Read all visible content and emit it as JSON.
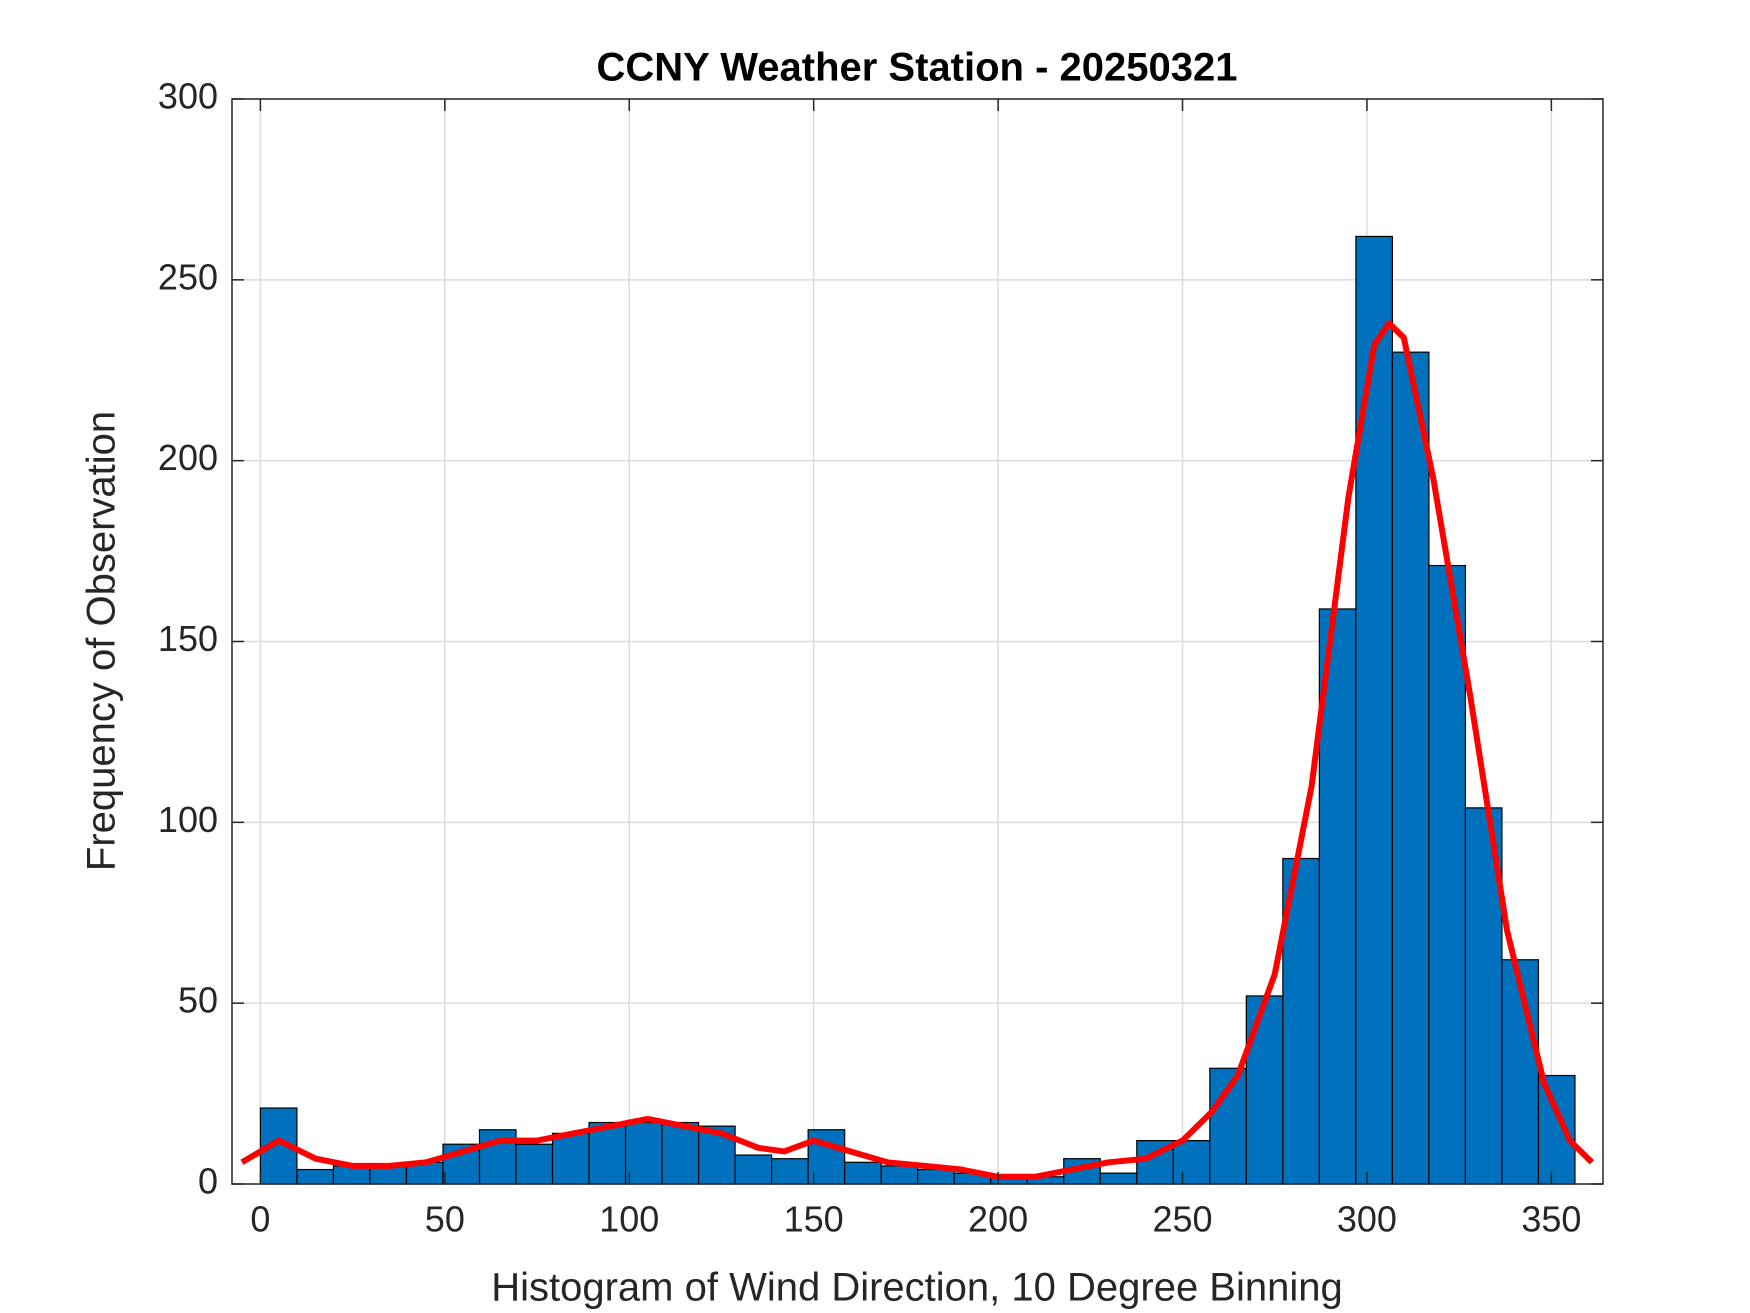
{
  "chart_data": {
    "type": "histogram",
    "title": "CCNY Weather Station - 20250321",
    "xlabel": "Histogram of Wind Direction, 10 Degree Binning",
    "ylabel": "Frequency of Observation",
    "bins": [
      0,
      9.9,
      19.8,
      29.7,
      39.6,
      49.5,
      59.4,
      69.3,
      79.2,
      89.1,
      99,
      108.9,
      118.8,
      128.7,
      138.6,
      148.5,
      158.4,
      168.3,
      178.2,
      188.1,
      198,
      207.9,
      217.8,
      227.7,
      237.6,
      247.5,
      257.4,
      267.3,
      277.2,
      287.1,
      297,
      306.9,
      316.8,
      326.7,
      336.6,
      346.5,
      356.4
    ],
    "counts": [
      21,
      4,
      5,
      5,
      6,
      11,
      15,
      11,
      14,
      17,
      17,
      17,
      16,
      8,
      7,
      15,
      6,
      5,
      4,
      3,
      2,
      2,
      7,
      3,
      12,
      12,
      32,
      52,
      90,
      159,
      262,
      230,
      171,
      104,
      62,
      30
    ],
    "color": "#0072bd",
    "edgecolor": "#000000",
    "curve": {
      "color": "#ff0000",
      "x": [
        -5,
        5,
        15,
        25,
        35,
        45,
        55,
        65,
        75,
        85,
        95,
        105,
        115,
        125,
        135,
        142,
        150,
        160,
        170,
        180,
        190,
        200,
        210,
        220,
        230,
        240,
        250,
        258,
        265,
        275,
        285,
        295,
        302,
        306,
        310,
        318,
        328,
        338,
        348,
        355,
        361
      ],
      "y": [
        6,
        12,
        7,
        5,
        5,
        6,
        9,
        12,
        12,
        14,
        16,
        18,
        16,
        14,
        10,
        9,
        12,
        9,
        6,
        5,
        4,
        2,
        2,
        4,
        6,
        7,
        12,
        20,
        30,
        58,
        110,
        190,
        232,
        238,
        234,
        195,
        135,
        70,
        28,
        12,
        6
      ]
    },
    "xlim": [
      -7.7,
      364
    ],
    "ylim": [
      0,
      300
    ],
    "xticks": [
      0,
      50,
      100,
      150,
      200,
      250,
      300,
      350
    ],
    "yticks": [
      0,
      50,
      100,
      150,
      200,
      250,
      300
    ],
    "grid": true
  }
}
